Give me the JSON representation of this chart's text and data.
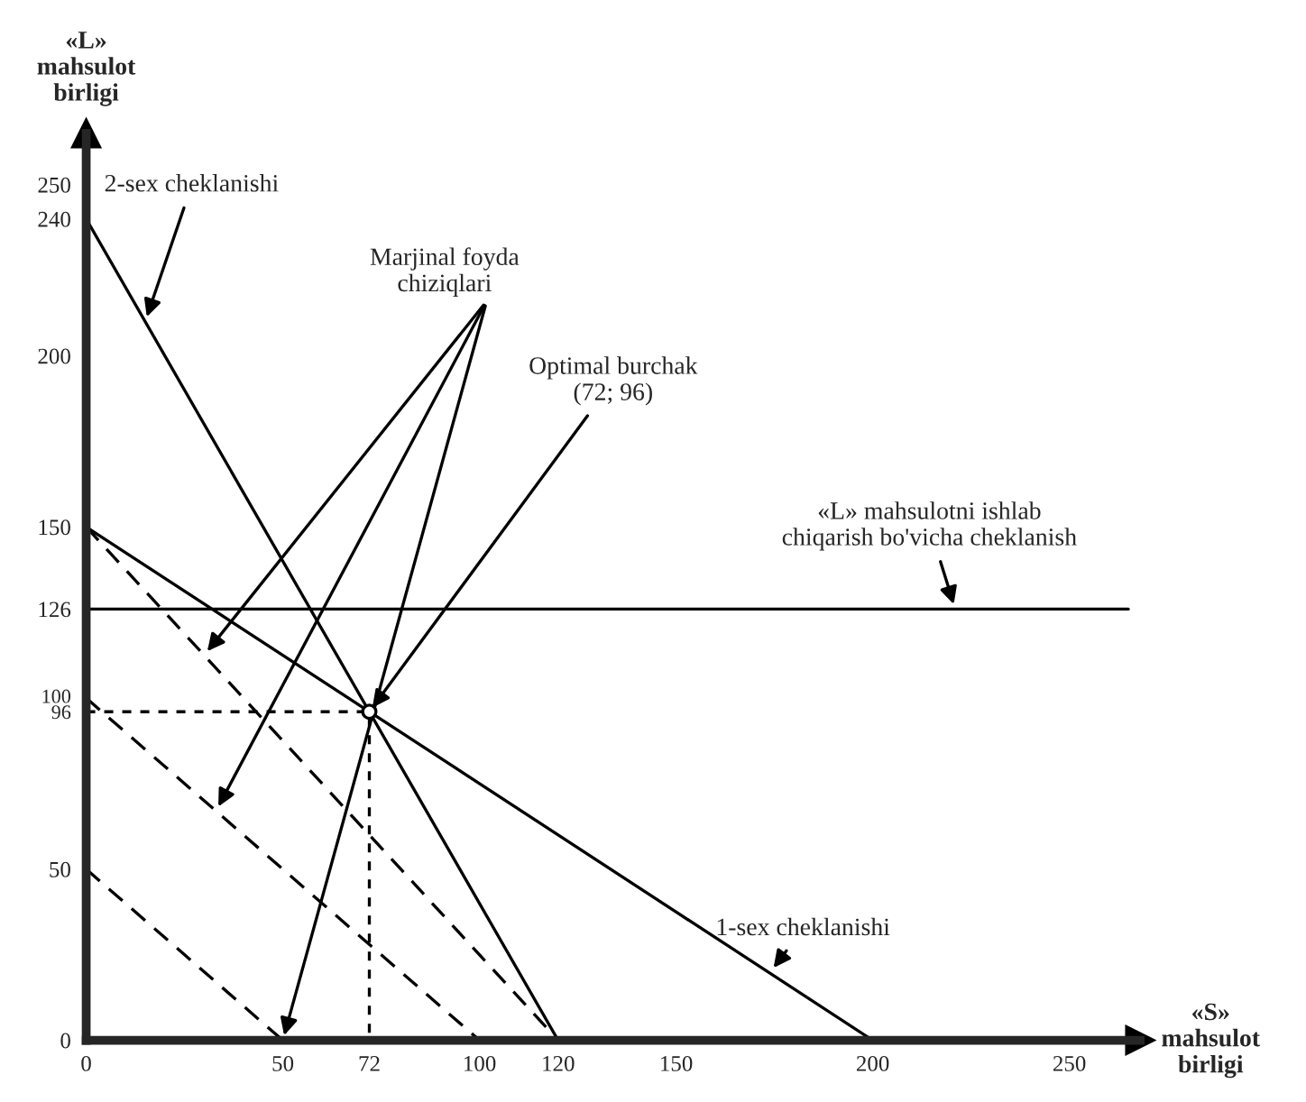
{
  "chart_data": {
    "type": "line",
    "xlabel": "«S»\nmahsulot\nbirligi",
    "ylabel": "«L»\nmahsulot\nbirligi",
    "xlim": [
      0,
      268
    ],
    "ylim": [
      0,
      265
    ],
    "xticks": [
      0,
      50,
      72,
      100,
      120,
      150,
      200,
      250
    ],
    "yticks": [
      0,
      50,
      96,
      100,
      126,
      150,
      200,
      240,
      250
    ],
    "grid": false,
    "legend": false,
    "marker": "none",
    "series": [
      {
        "color": "#000000",
        "x": [
          0,
          120
        ],
        "values": [
          240,
          0
        ],
        "line_style": "solid"
      },
      {
        "color": "#000000",
        "x": [
          0,
          200
        ],
        "values": [
          150,
          0
        ],
        "line_style": "solid"
      },
      {
        "color": "#000000",
        "x": [
          0,
          265
        ],
        "values": [
          126,
          126
        ],
        "line_style": "solid"
      },
      {
        "color": "#000000",
        "x": [
          0,
          120
        ],
        "values": [
          150,
          0
        ],
        "line_style": "dashed"
      },
      {
        "color": "#000000",
        "x": [
          0,
          100
        ],
        "values": [
          100,
          0
        ],
        "line_style": "dashed"
      },
      {
        "color": "#000000",
        "x": [
          0,
          50
        ],
        "values": [
          50,
          0
        ],
        "line_style": "dashed"
      },
      {
        "color": "#000000",
        "x": [
          0,
          72,
          72
        ],
        "values": [
          96,
          96,
          0
        ],
        "line_style": "dotted"
      },
      {
        "type": "scatter",
        "color": "#000000",
        "x": [
          72
        ],
        "values": [
          96
        ],
        "marker": "circle"
      }
    ],
    "annotations": [
      {
        "text": "2-sex cheklanishi",
        "x": 15,
        "y": 210
      },
      "Marjinal foyda\nchiziqlari",
      {
        "text": "Optimal burchak\n(72; 96)",
        "x": 72,
        "y": 96
      },
      {
        "text": "«L» mahsulotni ishlab\nchiqarish bo'vicha cheklanish",
        "x": 221,
        "y": 126
      },
      {
        "text": "1-sex cheklanishi",
        "x": 174,
        "y": 20
      }
    ]
  }
}
